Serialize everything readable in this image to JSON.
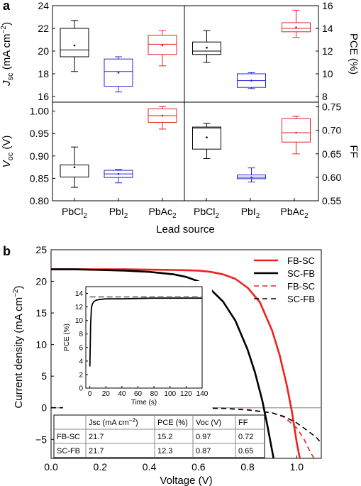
{
  "figure": {
    "panel_a_letter": "a",
    "panel_b_letter": "b"
  },
  "chart_data": [
    {
      "id": "a-jsc",
      "type": "box",
      "categories": [
        "PbCl2",
        "PbI2",
        "PbAc2"
      ],
      "ylabel_main": "J",
      "ylabel_sub": "sc",
      "ylabel_unit": " (mA cm",
      "ylabel_exp": "−2",
      "ylabel_close": ")",
      "ylim": [
        15.5,
        24
      ],
      "yticks": [
        16,
        18,
        20,
        22,
        24
      ],
      "colors": [
        "#000000",
        "#2424d6",
        "#e02020"
      ],
      "boxes": [
        {
          "whisker_low": 18.2,
          "q1": 19.5,
          "median": 20.1,
          "q3": 22.0,
          "whisker_high": 22.7,
          "mean": 20.5
        },
        {
          "whisker_low": 16.4,
          "q1": 16.9,
          "median": 18.2,
          "q3": 19.3,
          "whisker_high": 19.5,
          "mean": 18.1
        },
        {
          "whisker_low": 18.7,
          "q1": 19.7,
          "median": 20.6,
          "q3": 21.4,
          "whisker_high": 21.8,
          "mean": 20.5
        }
      ]
    },
    {
      "id": "a-pce",
      "type": "box",
      "categories": [
        "PbCl2",
        "PbI2",
        "PbAc2"
      ],
      "ylabel": "PCE (%)",
      "ylim": [
        7.5,
        16
      ],
      "yticks": [
        8,
        10,
        12,
        14,
        16
      ],
      "colors": [
        "#000000",
        "#2424d6",
        "#e02020"
      ],
      "boxes": [
        {
          "whisker_low": 11.0,
          "q1": 11.7,
          "median": 12.0,
          "q3": 12.8,
          "whisker_high": 13.8,
          "mean": 12.3
        },
        {
          "whisker_low": 8.7,
          "q1": 8.8,
          "median": 9.4,
          "q3": 10.0,
          "whisker_high": 10.1,
          "mean": 9.4
        },
        {
          "whisker_low": 13.2,
          "q1": 13.7,
          "median": 14.0,
          "q3": 14.5,
          "whisker_high": 15.6,
          "mean": 14.1
        }
      ]
    },
    {
      "id": "a-voc",
      "type": "box",
      "categories": [
        "PbCl2",
        "PbI2",
        "PbAc2"
      ],
      "ylabel_main": "V",
      "ylabel_sub": "oc",
      "ylabel_unit": " (V)",
      "ylim": [
        0.8,
        1.02
      ],
      "yticks": [
        0.8,
        0.85,
        0.9,
        0.95,
        1.0
      ],
      "tick_labels": [
        "0.80",
        "0.85",
        "0.90",
        "0.95",
        "1.00"
      ],
      "colors": [
        "#000000",
        "#2424d6",
        "#e02020"
      ],
      "boxes": [
        {
          "whisker_low": 0.83,
          "q1": 0.853,
          "median": 0.853,
          "q3": 0.88,
          "whisker_high": 0.92,
          "mean": 0.875
        },
        {
          "whisker_low": 0.84,
          "q1": 0.852,
          "median": 0.86,
          "q3": 0.868,
          "whisker_high": 0.87,
          "mean": 0.86
        },
        {
          "whisker_low": 0.96,
          "q1": 0.975,
          "median": 0.99,
          "q3": 1.005,
          "whisker_high": 1.01,
          "mean": 0.99
        }
      ]
    },
    {
      "id": "a-ff",
      "type": "box",
      "categories": [
        "PbCl2",
        "PbI2",
        "PbAc2"
      ],
      "ylabel": "FF",
      "ylim": [
        0.55,
        0.76
      ],
      "yticks": [
        0.55,
        0.6,
        0.65,
        0.7,
        0.75
      ],
      "tick_labels": [
        "0.55",
        "0.60",
        "0.65",
        "0.70",
        "0.75"
      ],
      "colors": [
        "#000000",
        "#2424d6",
        "#e02020"
      ],
      "boxes": [
        {
          "whisker_low": 0.64,
          "q1": 0.66,
          "median": 0.705,
          "q3": 0.707,
          "whisker_high": 0.715,
          "mean": 0.685
        },
        {
          "whisker_low": 0.59,
          "q1": 0.597,
          "median": 0.6,
          "q3": 0.605,
          "whisker_high": 0.62,
          "mean": 0.6
        },
        {
          "whisker_low": 0.65,
          "q1": 0.675,
          "median": 0.695,
          "q3": 0.725,
          "whisker_high": 0.73,
          "mean": 0.695
        }
      ]
    },
    {
      "id": "a-x",
      "type": "category-axis",
      "labels": [
        {
          "base": "PbCl",
          "sub": "2"
        },
        {
          "base": "PbI",
          "sub": "2"
        },
        {
          "base": "PbAc",
          "sub": "2"
        },
        {
          "base": "PbCl",
          "sub": "2"
        },
        {
          "base": "PbI",
          "sub": "2"
        },
        {
          "base": "PbAc",
          "sub": "2"
        }
      ],
      "xlabel": "Lead source"
    },
    {
      "id": "b-jv",
      "type": "line",
      "xlabel": "Voltage (V)",
      "ylabel": "Current density (mA cm",
      "ylabel_exp": "−2",
      "ylabel_close": ")",
      "xlim": [
        0,
        1.1
      ],
      "ylim": [
        -8,
        25
      ],
      "xticks": [
        0.0,
        0.2,
        0.4,
        0.6,
        0.8,
        1.0
      ],
      "xtick_labels": [
        "0.0",
        "0.2",
        "0.4",
        "0.6",
        "0.8",
        "1.0"
      ],
      "yticks": [
        -5,
        0,
        5,
        10,
        15,
        20,
        25
      ],
      "series": [
        {
          "name": "FB-SC",
          "color": "#ee2020",
          "dash": false,
          "x": [
            0.0,
            0.1,
            0.2,
            0.3,
            0.4,
            0.5,
            0.6,
            0.65,
            0.7,
            0.75,
            0.8,
            0.85,
            0.9,
            0.93,
            0.96,
            0.98,
            1.0,
            1.02
          ],
          "y": [
            21.9,
            21.9,
            21.9,
            21.9,
            21.85,
            21.8,
            21.7,
            21.5,
            21.1,
            20.4,
            19.0,
            16.7,
            12.2,
            8.4,
            3.5,
            -0.5,
            -5.5,
            -9.5
          ]
        },
        {
          "name": "SC-FB",
          "color": "#000000",
          "dash": false,
          "x": [
            0.0,
            0.1,
            0.2,
            0.3,
            0.4,
            0.5,
            0.55,
            0.6,
            0.65,
            0.7,
            0.75,
            0.8,
            0.83,
            0.86,
            0.88,
            0.9,
            0.92
          ],
          "y": [
            21.9,
            21.9,
            21.8,
            21.7,
            21.5,
            21.1,
            20.7,
            20.0,
            18.7,
            16.8,
            13.8,
            9.2,
            5.6,
            1.1,
            -2.7,
            -6.8,
            -11.0
          ]
        },
        {
          "name": "FB-SC",
          "color": "#ee2020",
          "dash": true,
          "x": [
            0.0,
            0.2,
            0.4,
            0.6,
            0.7,
            0.8,
            0.9,
            0.95,
            1.0,
            1.03,
            1.05,
            1.07
          ],
          "y": [
            0.0,
            0.0,
            0.0,
            -0.05,
            -0.1,
            -0.3,
            -0.8,
            -1.5,
            -3.2,
            -5.0,
            -6.6,
            -8.0
          ]
        },
        {
          "name": "SC-FB",
          "color": "#000000",
          "dash": true,
          "x": [
            0.0,
            0.2,
            0.4,
            0.6,
            0.7,
            0.8,
            0.9,
            0.95,
            1.0,
            1.05,
            1.08,
            1.1
          ],
          "y": [
            0.0,
            0.0,
            0.0,
            -0.05,
            -0.1,
            -0.35,
            -0.8,
            -1.4,
            -2.4,
            -3.8,
            -4.7,
            -5.6
          ]
        }
      ]
    },
    {
      "id": "b-inset",
      "type": "line",
      "xlabel": "Time (s)",
      "ylabel": "PCE (%)",
      "xlim": [
        -5,
        140
      ],
      "ylim": [
        0,
        15
      ],
      "xticks": [
        0,
        20,
        40,
        60,
        80,
        100,
        120,
        140
      ],
      "yticks": [
        0,
        2,
        4,
        6,
        8,
        10,
        12,
        14
      ],
      "series": [
        {
          "name": "",
          "color": "#000000",
          "dash": false,
          "x": [
            0,
            1,
            2,
            3,
            5,
            8,
            12,
            20,
            40,
            80,
            140
          ],
          "y": [
            3.2,
            9.5,
            11.8,
            12.4,
            12.8,
            13.0,
            13.1,
            13.2,
            13.2,
            13.3,
            13.3
          ]
        },
        {
          "name": "",
          "color": "#999999",
          "dash": true,
          "x": [
            0,
            140
          ],
          "y": [
            13.5,
            13.5
          ]
        }
      ]
    },
    {
      "id": "b-table",
      "type": "table",
      "headers": [
        "",
        "Jsc (mA cm",
        "PCE (%)",
        "Voc (V)",
        "FF"
      ],
      "header_exp": "−2",
      "header_close": ")",
      "rows": [
        [
          "FB-SC",
          "21.7",
          "15.2",
          "0.97",
          "0.72"
        ],
        [
          "SC-FB",
          "21.7",
          "12.3",
          "0.87",
          "0.65"
        ]
      ]
    }
  ]
}
